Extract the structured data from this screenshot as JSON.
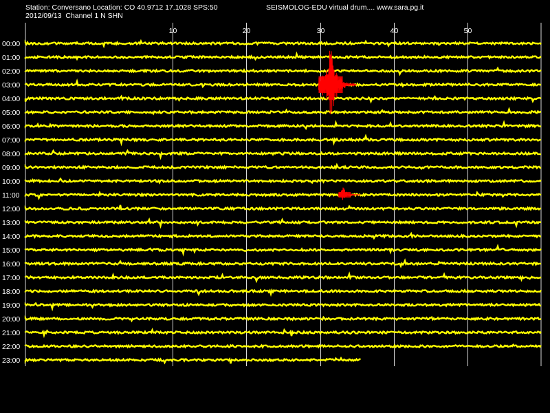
{
  "header": {
    "station_line": "Station: Conversano Location: CO 40.9712 17.1028 SPS:50",
    "date_line": "2012/09/13  Channel 1 N SHN",
    "brand_line": "SEISMOLOG-EDU virtual drum.... www.sara.pg.it"
  },
  "chart_data": {
    "type": "line",
    "subtype": "seismogram-drum",
    "x_unit": "minutes",
    "xlim": [
      -10,
      60
    ],
    "x_ticks": [
      10,
      20,
      30,
      40,
      50
    ],
    "x_tick_labels": [
      "10",
      "20",
      "30",
      "40",
      "50"
    ],
    "row_labels": [
      "00:00",
      "01:00",
      "02:00",
      "03:00",
      "04:00",
      "05:00",
      "06:00",
      "07:00",
      "08:00",
      "09:00",
      "10:00",
      "11:00",
      "12:00",
      "13:00",
      "14:00",
      "15:00",
      "16:00",
      "17:00",
      "18:00",
      "19:00",
      "20:00",
      "21:00",
      "22:00",
      "23:00"
    ],
    "last_row_end_minute": 35.5,
    "grid": true,
    "trace_color": "#ffff00",
    "event_color": "#ff0000",
    "background": "#000000",
    "events": [
      {
        "row": 3,
        "start_minute": 29.8,
        "peak_minute": 31.4,
        "end_minute": 35.0
      },
      {
        "row": 11,
        "start_minute": 32.5,
        "peak_minute": 33.0,
        "end_minute": 35.5
      }
    ]
  }
}
